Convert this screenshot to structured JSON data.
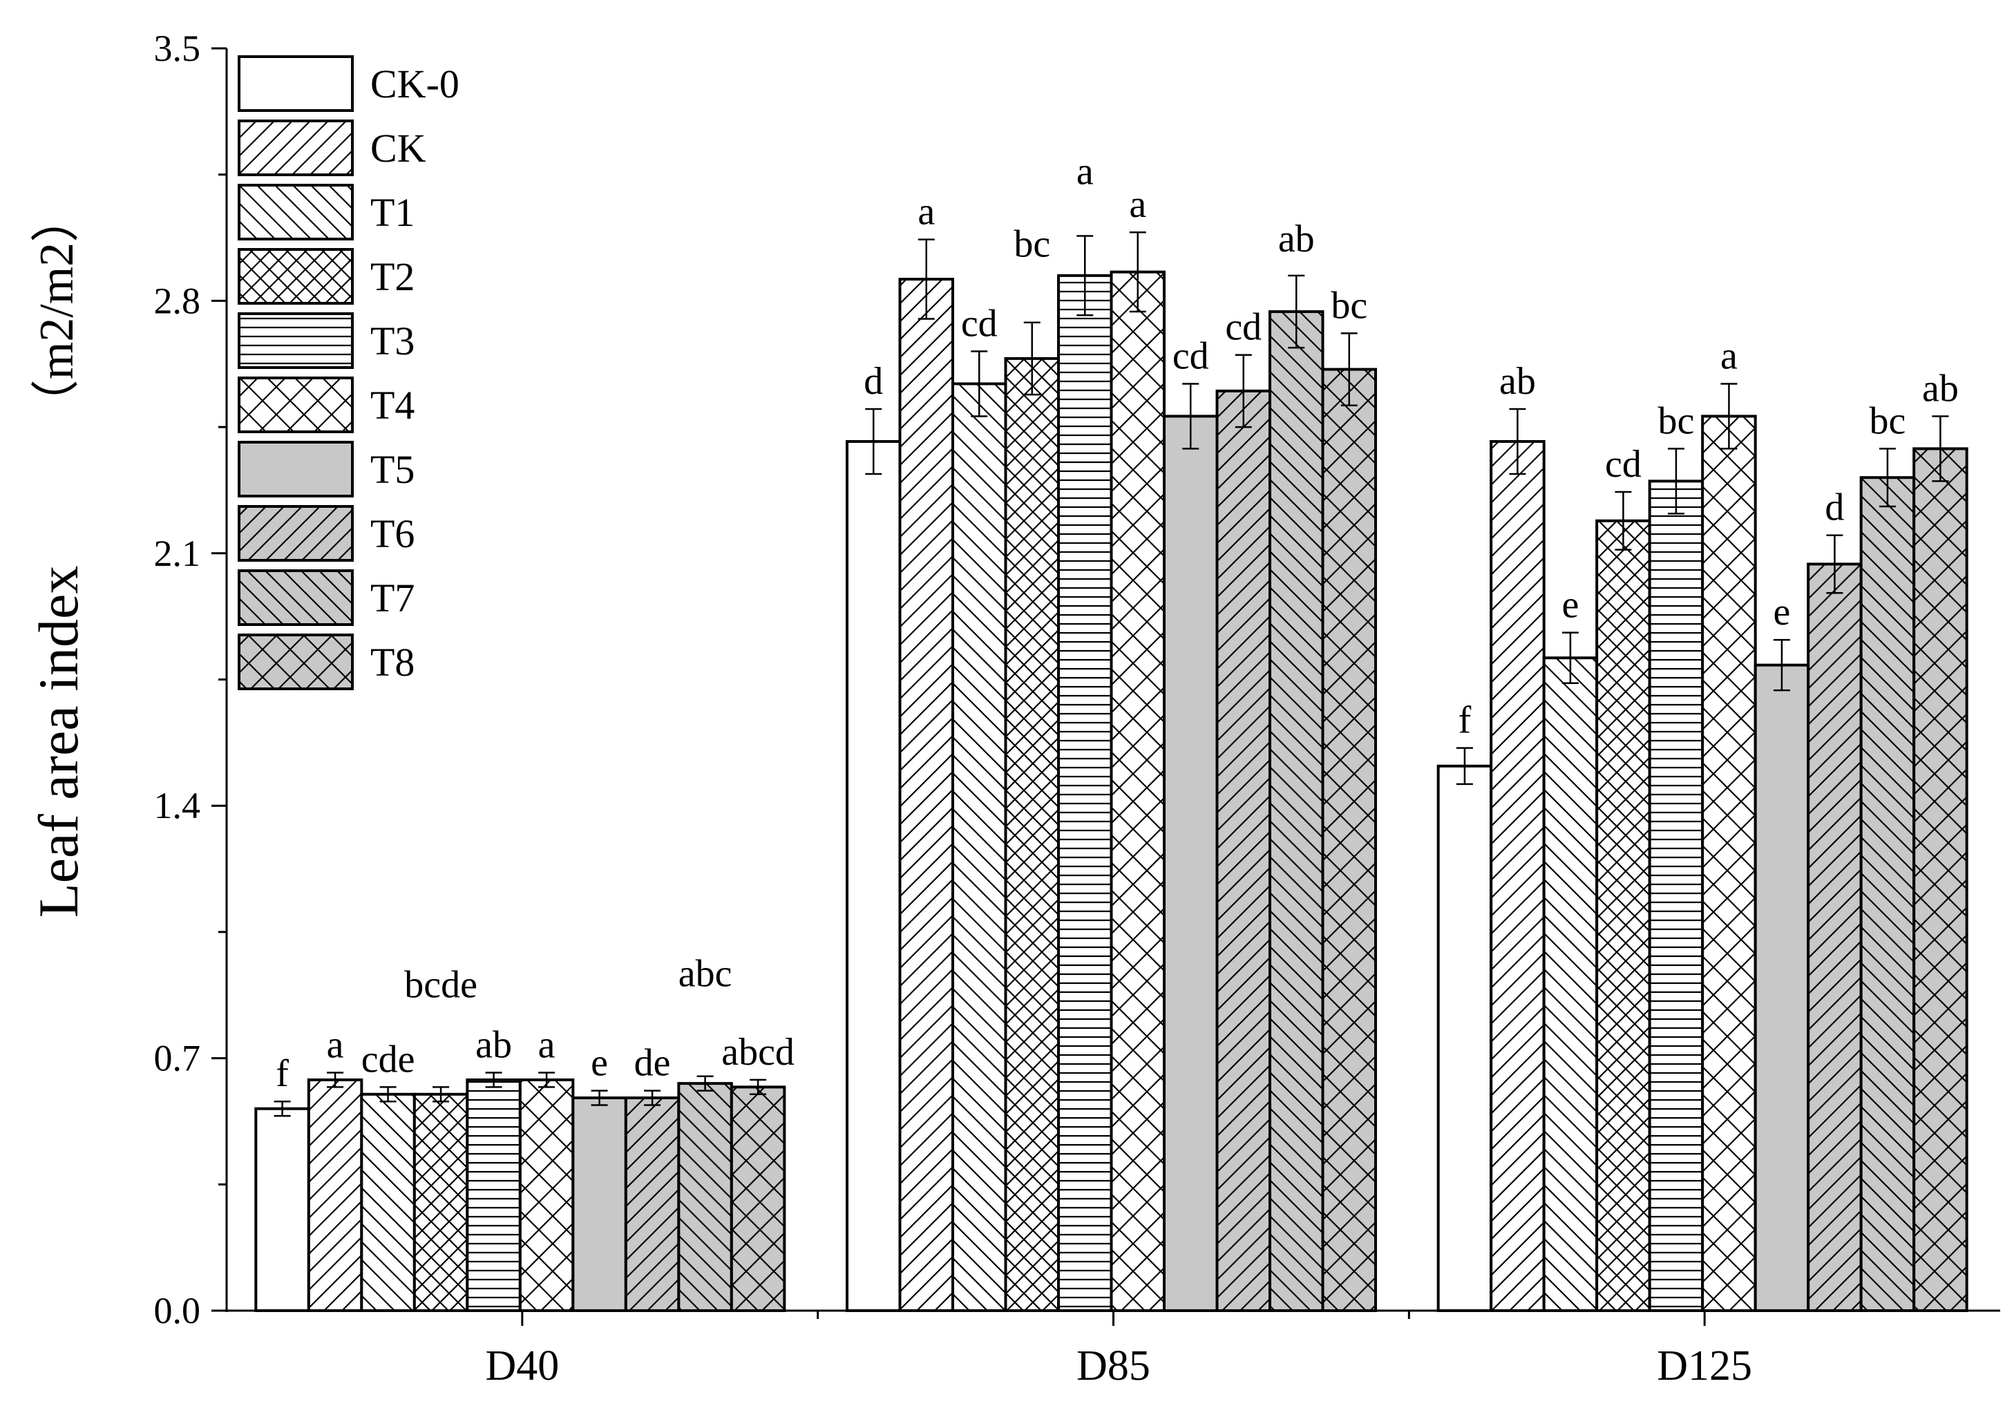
{
  "chart_data": {
    "type": "bar",
    "ylabel": "Leaf area index",
    "yunit": "（m2/m2）",
    "ylim": [
      0,
      3.5
    ],
    "yticks": [
      "0.0",
      "0.7",
      "1.4",
      "2.1",
      "2.8",
      "3.5"
    ],
    "categories": [
      "D40",
      "D85",
      "D125"
    ],
    "legend_position": "top-left",
    "series": [
      {
        "name": "CK-0",
        "pattern": "none",
        "fill": "#ffffff",
        "values": [
          0.56,
          2.41,
          1.51
        ],
        "errors": [
          0.02,
          0.09,
          0.05
        ],
        "letters": [
          "f",
          "d",
          "f"
        ]
      },
      {
        "name": "CK",
        "pattern": "diagR",
        "fill": "#ffffff",
        "values": [
          0.64,
          2.86,
          2.41
        ],
        "errors": [
          0.02,
          0.11,
          0.09
        ],
        "letters": [
          "a",
          "a",
          "ab"
        ]
      },
      {
        "name": "T1",
        "pattern": "diagL",
        "fill": "#ffffff",
        "values": [
          0.6,
          2.57,
          1.81
        ],
        "errors": [
          0.02,
          0.09,
          0.07
        ],
        "letters": [
          "cde",
          "cd",
          "e"
        ]
      },
      {
        "name": "T2",
        "pattern": "cross",
        "fill": "#ffffff",
        "values": [
          0.6,
          2.64,
          2.19
        ],
        "errors": [
          0.02,
          0.1,
          0.08
        ],
        "letters": [
          "bcde",
          "bc",
          "cd"
        ]
      },
      {
        "name": "T3",
        "pattern": "horiz",
        "fill": "#ffffff",
        "values": [
          0.64,
          2.87,
          2.3
        ],
        "errors": [
          0.02,
          0.11,
          0.09
        ],
        "letters": [
          "ab",
          "a",
          "bc"
        ]
      },
      {
        "name": "T4",
        "pattern": "crossD",
        "fill": "#ffffff",
        "values": [
          0.64,
          2.88,
          2.48
        ],
        "errors": [
          0.02,
          0.11,
          0.09
        ],
        "letters": [
          "a",
          "a",
          "a"
        ]
      },
      {
        "name": "T5",
        "pattern": "none",
        "fill": "#c8c8c8",
        "values": [
          0.59,
          2.48,
          1.79
        ],
        "errors": [
          0.02,
          0.09,
          0.07
        ],
        "letters": [
          "e",
          "cd",
          "e"
        ]
      },
      {
        "name": "T6",
        "pattern": "diagR",
        "fill": "#c8c8c8",
        "values": [
          0.59,
          2.55,
          2.07
        ],
        "errors": [
          0.02,
          0.1,
          0.08
        ],
        "letters": [
          "de",
          "cd",
          "d"
        ]
      },
      {
        "name": "T7",
        "pattern": "diagL",
        "fill": "#c8c8c8",
        "values": [
          0.63,
          2.77,
          2.31
        ],
        "errors": [
          0.02,
          0.1,
          0.08
        ],
        "letters": [
          "abc",
          "ab",
          "bc"
        ]
      },
      {
        "name": "T8",
        "pattern": "crossD",
        "fill": "#c8c8c8",
        "values": [
          0.62,
          2.61,
          2.39
        ],
        "errors": [
          0.02,
          0.1,
          0.09
        ],
        "letters": [
          "abcd",
          "bc",
          "ab"
        ]
      }
    ]
  }
}
